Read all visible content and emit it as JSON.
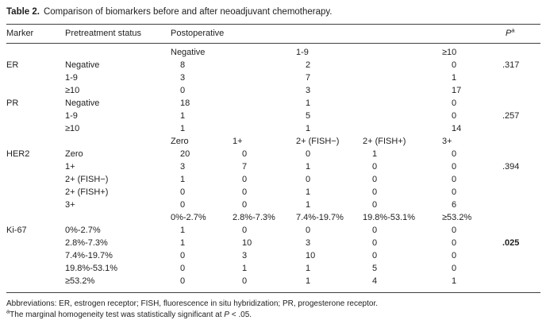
{
  "title": {
    "bold": "Table 2.",
    "rest": "Comparison of biomarkers before and after neoadjuvant chemotherapy."
  },
  "header": {
    "marker": "Marker",
    "pretreatment": "Pretreatment status",
    "postoperative": "Postoperative",
    "p_label": "P",
    "p_superscript": "a"
  },
  "table": {
    "sections": [
      {
        "marker": "ER",
        "subheader": [
          "Negative",
          "",
          "1-9",
          "",
          "≥10"
        ],
        "rows": [
          {
            "label": "Negative",
            "values": [
              "8",
              "",
              "2",
              "",
              "0"
            ],
            "p": ".317",
            "p_bold": false
          },
          {
            "label": "1-9",
            "values": [
              "3",
              "",
              "7",
              "",
              "1"
            ],
            "p": "",
            "p_bold": false
          },
          {
            "label": "≥10",
            "values": [
              "0",
              "",
              "3",
              "",
              "17"
            ],
            "p": "",
            "p_bold": false
          }
        ]
      },
      {
        "marker": "PR",
        "subheader": null,
        "rows": [
          {
            "label": "Negative",
            "values": [
              "18",
              "",
              "1",
              "",
              "0"
            ],
            "p": "",
            "p_bold": false
          },
          {
            "label": "1-9",
            "values": [
              "1",
              "",
              "5",
              "",
              "0"
            ],
            "p": ".257",
            "p_bold": false
          },
          {
            "label": "≥10",
            "values": [
              "1",
              "",
              "1",
              "",
              "14"
            ],
            "p": "",
            "p_bold": false
          }
        ]
      },
      {
        "marker": "HER2",
        "subheader": [
          "Zero",
          "1+",
          "2+ (FISH−)",
          "2+ (FISH+)",
          "3+"
        ],
        "rows": [
          {
            "label": "Zero",
            "values": [
              "20",
              "0",
              "0",
              "1",
              "0"
            ],
            "p": "",
            "p_bold": false
          },
          {
            "label": "1+",
            "values": [
              "3",
              "7",
              "1",
              "0",
              "0"
            ],
            "p": ".394",
            "p_bold": false
          },
          {
            "label": "2+ (FISH−)",
            "values": [
              "1",
              "0",
              "0",
              "0",
              "0"
            ],
            "p": "",
            "p_bold": false
          },
          {
            "label": "2+ (FISH+)",
            "values": [
              "0",
              "0",
              "1",
              "0",
              "0"
            ],
            "p": "",
            "p_bold": false
          },
          {
            "label": "3+",
            "values": [
              "0",
              "0",
              "1",
              "0",
              "6"
            ],
            "p": "",
            "p_bold": false
          }
        ]
      },
      {
        "marker": "Ki-67",
        "subheader": [
          "0%-2.7%",
          "2.8%-7.3%",
          "7.4%-19.7%",
          "19.8%-53.1%",
          "≥53.2%"
        ],
        "rows": [
          {
            "label": "0%-2.7%",
            "values": [
              "1",
              "0",
              "0",
              "0",
              "0"
            ],
            "p": "",
            "p_bold": false
          },
          {
            "label": "2.8%-7.3%",
            "values": [
              "1",
              "10",
              "3",
              "0",
              "0"
            ],
            "p": ".025",
            "p_bold": true
          },
          {
            "label": "7.4%-19.7%",
            "values": [
              "0",
              "3",
              "10",
              "0",
              "0"
            ],
            "p": "",
            "p_bold": false
          },
          {
            "label": "19.8%-53.1%",
            "values": [
              "0",
              "1",
              "1",
              "5",
              "0"
            ],
            "p": "",
            "p_bold": false
          },
          {
            "label": "≥53.2%",
            "values": [
              "0",
              "0",
              "1",
              "4",
              "1"
            ],
            "p": "",
            "p_bold": false
          }
        ]
      }
    ]
  },
  "footnotes": {
    "abbreviations": "Abbreviations: ER, estrogen receptor; FISH, fluorescence in situ hybridization; PR, progesterone receptor.",
    "note_marker": "a",
    "note_pre": "The marginal homogeneity test was statistically significant at ",
    "note_p": "P",
    "note_post": " < .05."
  }
}
